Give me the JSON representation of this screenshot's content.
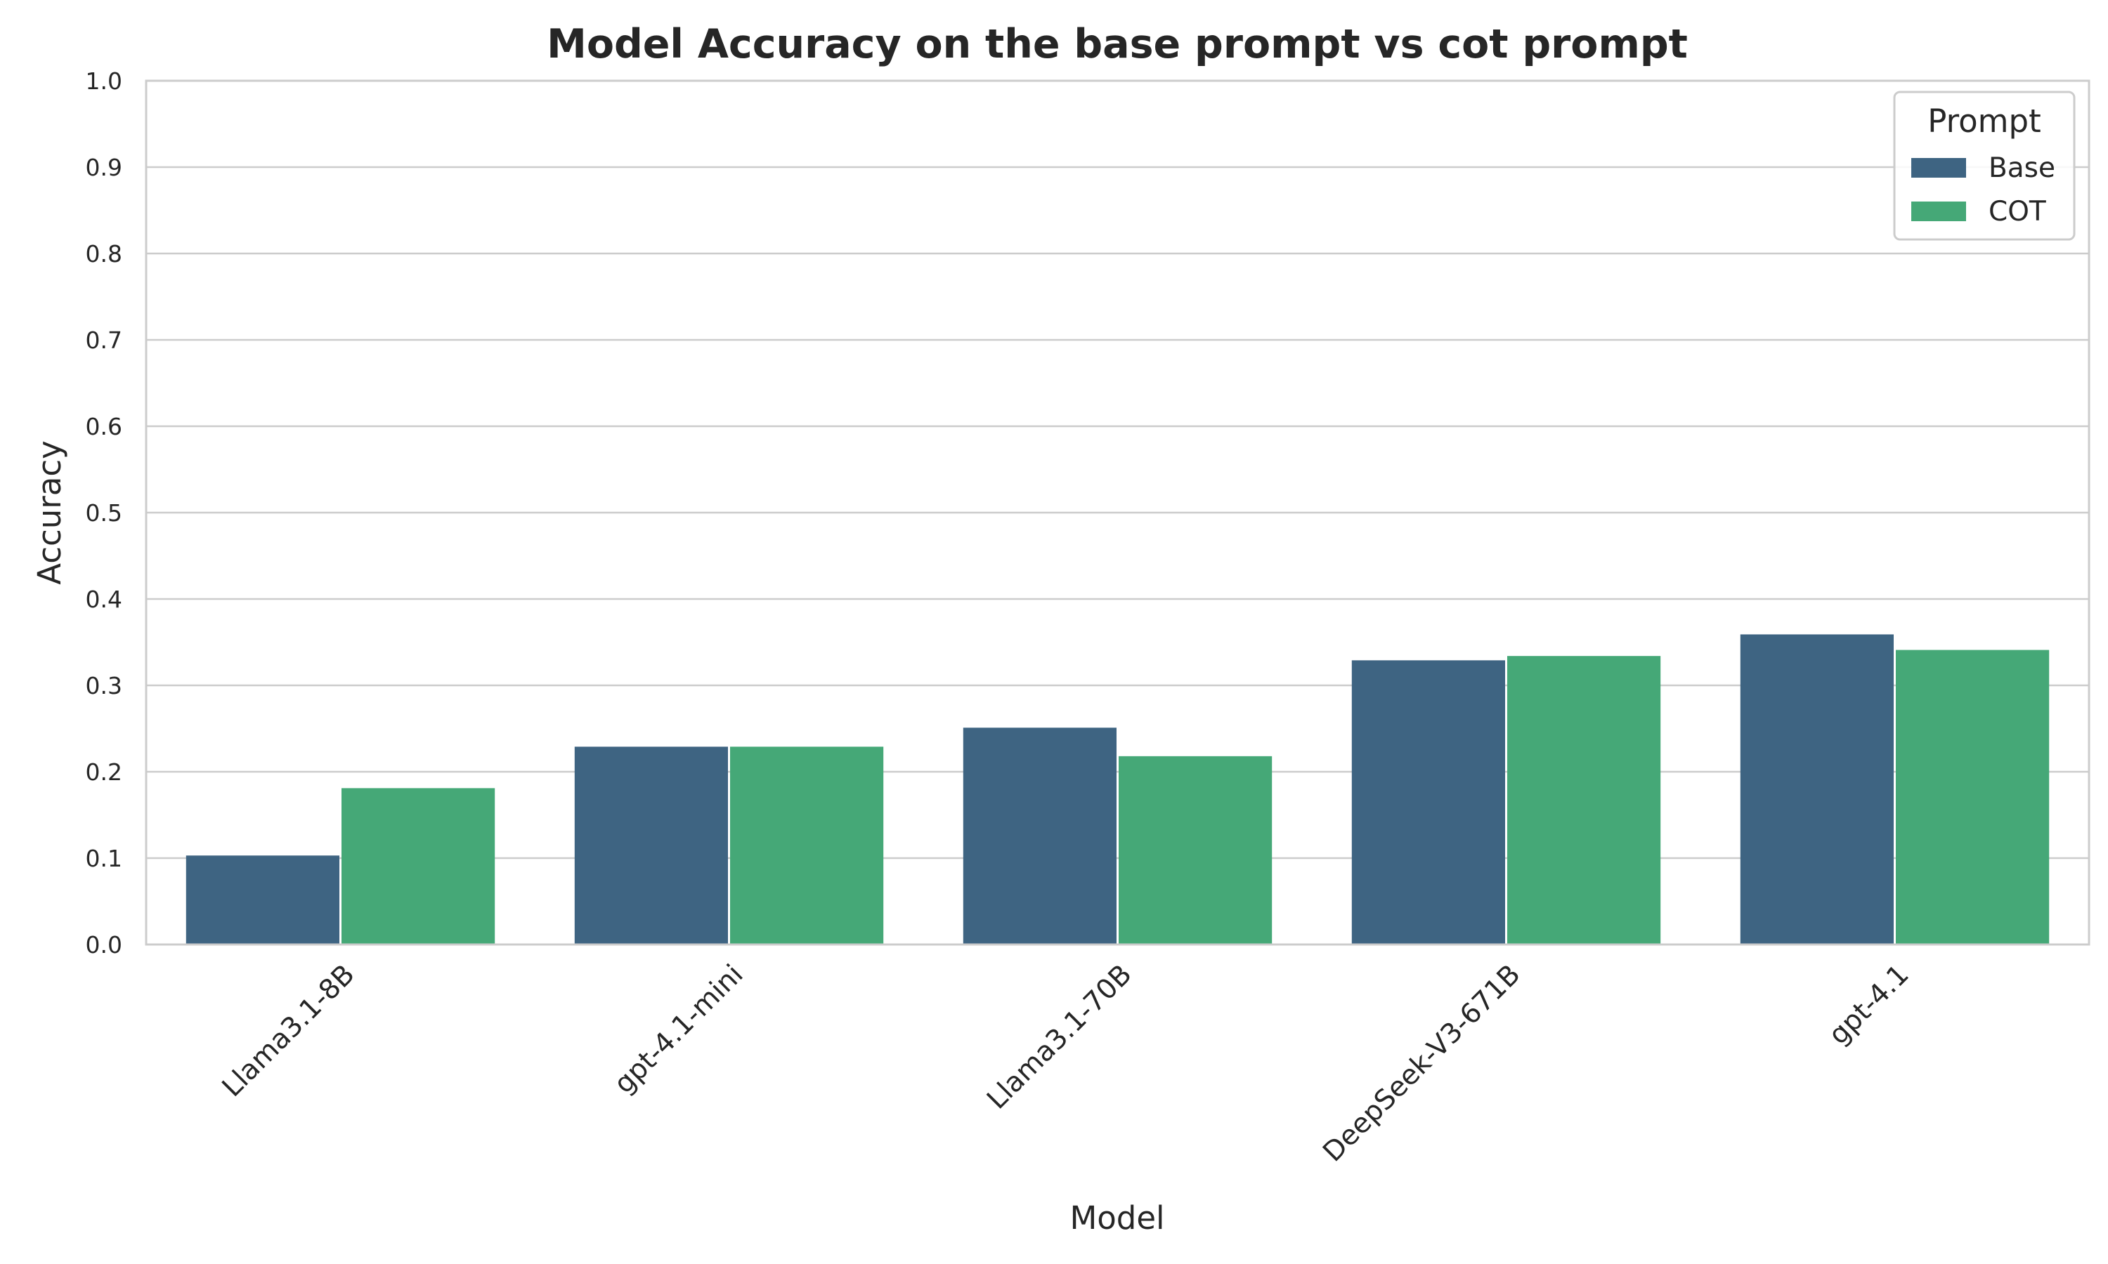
{
  "chart_data": {
    "type": "bar",
    "title": "Model Accuracy on the base prompt vs cot prompt",
    "xlabel": "Model",
    "ylabel": "Accuracy",
    "ylim": [
      0,
      1.0
    ],
    "yticks": [
      "0.0",
      "0.1",
      "0.2",
      "0.3",
      "0.4",
      "0.5",
      "0.6",
      "0.7",
      "0.8",
      "0.9",
      "1.0"
    ],
    "categories": [
      "Llama3.1-8B",
      "gpt-4.1-mini",
      "Llama3.1-70B",
      "DeepSeek-V3-671B",
      "gpt-4.1"
    ],
    "series": [
      {
        "name": "Base",
        "color": "#3e6482",
        "values": [
          0.103,
          0.229,
          0.251,
          0.329,
          0.359
        ]
      },
      {
        "name": "COT",
        "color": "#45a877",
        "values": [
          0.181,
          0.229,
          0.218,
          0.334,
          0.341
        ]
      }
    ],
    "legend": {
      "title": "Prompt",
      "placement": "top-right"
    },
    "grid": "horizontal"
  }
}
